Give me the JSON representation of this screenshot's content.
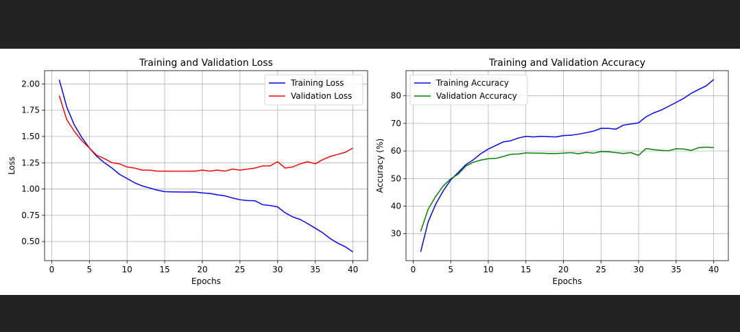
{
  "chart_data": [
    {
      "type": "line",
      "title": "Training and Validation Loss",
      "xlabel": "Epochs",
      "ylabel": "Loss",
      "xlim": [
        -0.95,
        41.95
      ],
      "ylim": [
        0.318,
        2.127
      ],
      "xticks": [
        0,
        5,
        10,
        15,
        20,
        25,
        30,
        35,
        40
      ],
      "yticks": [
        0.5,
        0.75,
        1.0,
        1.25,
        1.5,
        1.75,
        2.0
      ],
      "ytick_labels": [
        "0.50",
        "0.75",
        "1.00",
        "1.25",
        "1.50",
        "1.75",
        "2.00"
      ],
      "grid": true,
      "legend_position": "upper-right",
      "x": [
        1,
        2,
        3,
        4,
        5,
        6,
        7,
        8,
        9,
        10,
        11,
        12,
        13,
        14,
        15,
        16,
        17,
        18,
        19,
        20,
        21,
        22,
        23,
        24,
        25,
        26,
        27,
        28,
        29,
        30,
        31,
        32,
        33,
        34,
        35,
        36,
        37,
        38,
        39,
        40
      ],
      "series": [
        {
          "name": "Training Loss",
          "color": "#0000ff",
          "values": [
            2.04,
            1.78,
            1.61,
            1.49,
            1.39,
            1.31,
            1.25,
            1.2,
            1.14,
            1.1,
            1.06,
            1.03,
            1.01,
            0.99,
            0.975,
            0.973,
            0.972,
            0.971,
            0.972,
            0.963,
            0.958,
            0.945,
            0.935,
            0.915,
            0.898,
            0.89,
            0.888,
            0.851,
            0.843,
            0.83,
            0.774,
            0.735,
            0.71,
            0.67,
            0.627,
            0.583,
            0.527,
            0.484,
            0.45,
            0.4
          ]
        },
        {
          "name": "Validation Loss",
          "color": "#ff0000",
          "values": [
            1.89,
            1.66,
            1.55,
            1.46,
            1.39,
            1.32,
            1.29,
            1.25,
            1.24,
            1.21,
            1.2,
            1.18,
            1.18,
            1.17,
            1.17,
            1.17,
            1.17,
            1.17,
            1.17,
            1.18,
            1.17,
            1.18,
            1.17,
            1.19,
            1.18,
            1.19,
            1.2,
            1.22,
            1.22,
            1.26,
            1.2,
            1.21,
            1.24,
            1.26,
            1.24,
            1.28,
            1.31,
            1.33,
            1.35,
            1.39
          ]
        }
      ]
    },
    {
      "type": "line",
      "title": "Training and Validation Accuracy",
      "xlabel": "Epochs",
      "ylabel": "Accuracy (%)",
      "xlim": [
        -0.95,
        41.95
      ],
      "ylim": [
        20.22,
        89.13
      ],
      "xticks": [
        0,
        5,
        10,
        15,
        20,
        25,
        30,
        35,
        40
      ],
      "yticks": [
        30,
        40,
        50,
        60,
        70,
        80
      ],
      "ytick_labels": [
        "30",
        "40",
        "50",
        "60",
        "70",
        "80"
      ],
      "grid": true,
      "legend_position": "upper-left",
      "x": [
        1,
        2,
        3,
        4,
        5,
        6,
        7,
        8,
        9,
        10,
        11,
        12,
        13,
        14,
        15,
        16,
        17,
        18,
        19,
        20,
        21,
        22,
        23,
        24,
        25,
        26,
        27,
        28,
        29,
        30,
        31,
        32,
        33,
        34,
        35,
        36,
        37,
        38,
        39,
        40
      ],
      "series": [
        {
          "name": "Training Accuracy",
          "color": "#0000ff",
          "values": [
            23.4,
            34.3,
            40.7,
            45.5,
            49.5,
            52.2,
            55.0,
            56.8,
            59.0,
            60.7,
            62.0,
            63.3,
            63.7,
            64.7,
            65.3,
            65.1,
            65.3,
            65.2,
            65.1,
            65.6,
            65.7,
            66.1,
            66.6,
            67.2,
            68.2,
            68.2,
            67.9,
            69.4,
            69.8,
            70.2,
            72.4,
            73.8,
            74.8,
            76.2,
            77.6,
            79.1,
            80.9,
            82.3,
            83.6,
            85.9
          ]
        },
        {
          "name": "Validation Accuracy",
          "color": "#008000",
          "values": [
            30.8,
            38.9,
            43.5,
            47.3,
            49.9,
            51.6,
            54.5,
            55.9,
            56.7,
            57.2,
            57.3,
            58.0,
            58.8,
            58.9,
            59.3,
            59.2,
            59.2,
            59.1,
            59.1,
            59.2,
            59.4,
            59.0,
            59.5,
            59.2,
            59.8,
            59.7,
            59.4,
            59.1,
            59.4,
            58.4,
            60.9,
            60.5,
            60.2,
            60.1,
            60.8,
            60.7,
            60.2,
            61.2,
            61.4,
            61.2
          ]
        }
      ]
    }
  ]
}
